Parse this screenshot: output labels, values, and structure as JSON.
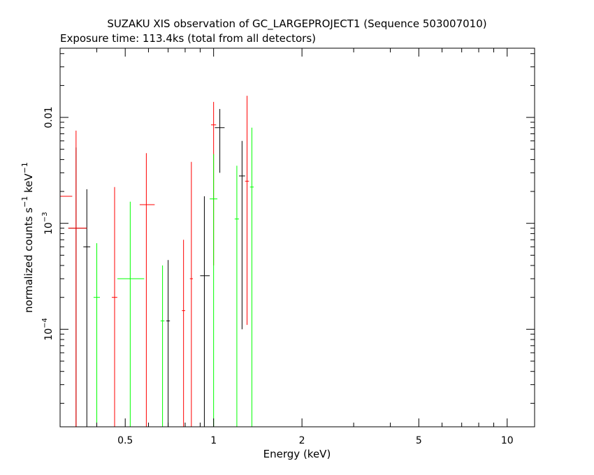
{
  "chart_data": {
    "type": "scatter",
    "title": "SUZAKU XIS observation of GC_LARGEPROJECT1 (Sequence 503007010)",
    "subtitle": "Exposure time: 113.4ks (total from all detectors)",
    "xlabel": "Energy (keV)",
    "ylabel_main": "normalized counts s",
    "ylabel_sup1": "−1",
    "ylabel_mid": " keV",
    "ylabel_sup2": "−1",
    "x_scale": "log",
    "y_scale": "log",
    "xlim": [
      0.3,
      12.4
    ],
    "ylim": [
      1.2e-05,
      0.045
    ],
    "x_ticks": [
      {
        "value": 0.5,
        "label": "0.5"
      },
      {
        "value": 1,
        "label": "1"
      },
      {
        "value": 2,
        "label": "2"
      },
      {
        "value": 5,
        "label": "5"
      },
      {
        "value": 10,
        "label": "10"
      }
    ],
    "y_ticks": [
      {
        "value": 0.0001,
        "base": "10",
        "exp": "−4"
      },
      {
        "value": 0.001,
        "base": "10",
        "exp": "−3"
      },
      {
        "value": 0.01,
        "base": "0.01",
        "exp": ""
      }
    ],
    "grid": false,
    "legend": "none",
    "series": [
      {
        "color": "#000000",
        "points": [
          {
            "x": 0.34,
            "y": 0.0009,
            "xlo": 0.32,
            "xhi": 0.37,
            "ylo": 1.2e-05,
            "yhi": 0.0052
          },
          {
            "x": 0.37,
            "y": 0.0006,
            "xlo": 0.36,
            "xhi": 0.38,
            "ylo": 1.2e-05,
            "yhi": 0.0021
          },
          {
            "x": 0.7,
            "y": 0.00012,
            "xlo": 0.69,
            "xhi": 0.71,
            "ylo": 1.2e-05,
            "yhi": 0.00045
          },
          {
            "x": 0.93,
            "y": 0.00032,
            "xlo": 0.9,
            "xhi": 0.97,
            "ylo": 1.2e-05,
            "yhi": 0.0018
          },
          {
            "x": 1.05,
            "y": 0.008,
            "xlo": 1.01,
            "xhi": 1.09,
            "ylo": 0.003,
            "yhi": 0.012
          },
          {
            "x": 1.25,
            "y": 0.0028,
            "xlo": 1.22,
            "xhi": 1.28,
            "ylo": 0.0001,
            "yhi": 0.006
          }
        ]
      },
      {
        "color": "#ff0000",
        "points": [
          {
            "x": 0.3,
            "y": 0.0018,
            "xlo": 0.3,
            "xhi": 0.33,
            "ylo": 1.2e-05,
            "yhi": 0.016
          },
          {
            "x": 0.34,
            "y": 0.0009,
            "xlo": 0.32,
            "xhi": 0.37,
            "ylo": 1.2e-05,
            "yhi": 0.0075
          },
          {
            "x": 0.46,
            "y": 0.0002,
            "xlo": 0.45,
            "xhi": 0.47,
            "ylo": 1.2e-05,
            "yhi": 0.0022
          },
          {
            "x": 0.59,
            "y": 0.0015,
            "xlo": 0.56,
            "xhi": 0.63,
            "ylo": 1.2e-05,
            "yhi": 0.0046
          },
          {
            "x": 0.79,
            "y": 0.00015,
            "xlo": 0.78,
            "xhi": 0.8,
            "ylo": 1.2e-05,
            "yhi": 0.0007
          },
          {
            "x": 0.84,
            "y": 0.0003,
            "xlo": 0.83,
            "xhi": 0.85,
            "ylo": 1.2e-05,
            "yhi": 0.0038
          },
          {
            "x": 1.0,
            "y": 0.0085,
            "xlo": 0.98,
            "xhi": 1.02,
            "ylo": 0.0004,
            "yhi": 0.014
          },
          {
            "x": 1.3,
            "y": 0.0025,
            "xlo": 1.28,
            "xhi": 1.32,
            "ylo": 0.00011,
            "yhi": 0.016
          }
        ]
      },
      {
        "color": "#00ff00",
        "points": [
          {
            "x": 0.4,
            "y": 0.0002,
            "xlo": 0.39,
            "xhi": 0.41,
            "ylo": 1.2e-05,
            "yhi": 0.00065
          },
          {
            "x": 0.52,
            "y": 0.0003,
            "xlo": 0.47,
            "xhi": 0.58,
            "ylo": 1.2e-05,
            "yhi": 0.0016
          },
          {
            "x": 0.67,
            "y": 0.00012,
            "xlo": 0.66,
            "xhi": 0.68,
            "ylo": 1.2e-05,
            "yhi": 0.0004
          },
          {
            "x": 1.0,
            "y": 0.0017,
            "xlo": 0.97,
            "xhi": 1.03,
            "ylo": 1.2e-05,
            "yhi": 0.0045
          },
          {
            "x": 1.2,
            "y": 0.0011,
            "xlo": 1.18,
            "xhi": 1.22,
            "ylo": 1.2e-05,
            "yhi": 0.0035
          },
          {
            "x": 1.35,
            "y": 0.0022,
            "xlo": 1.33,
            "xhi": 1.37,
            "ylo": 1.2e-05,
            "yhi": 0.008
          }
        ]
      }
    ]
  }
}
